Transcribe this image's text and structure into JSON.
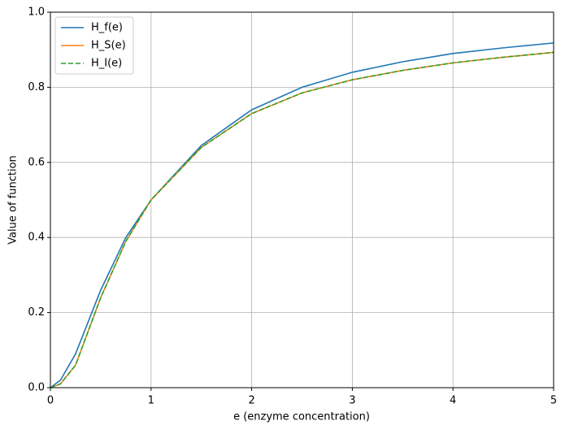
{
  "chart_data": {
    "type": "line",
    "xlabel": "e (enzyme concentration)",
    "ylabel": "Value of function",
    "x": [
      0,
      0.1,
      0.25,
      0.5,
      0.75,
      1,
      1.5,
      2,
      2.5,
      3,
      3.5,
      4,
      4.5,
      5
    ],
    "series": [
      {
        "name": "H_f(e)",
        "color": "#1f77b4",
        "dash": "solid",
        "values": [
          0,
          0.02,
          0.09,
          0.26,
          0.4,
          0.5,
          0.645,
          0.74,
          0.8,
          0.84,
          0.868,
          0.89,
          0.905,
          0.918
        ]
      },
      {
        "name": "H_S(e)",
        "color": "#ff7f0e",
        "dash": "solid",
        "values": [
          0,
          0.01,
          0.06,
          0.24,
          0.39,
          0.5,
          0.64,
          0.73,
          0.785,
          0.82,
          0.845,
          0.865,
          0.88,
          0.893
        ]
      },
      {
        "name": "H_I(e)",
        "color": "#2ca02c",
        "dash": "dashed",
        "values": [
          0,
          0.01,
          0.06,
          0.24,
          0.39,
          0.5,
          0.64,
          0.73,
          0.785,
          0.82,
          0.845,
          0.865,
          0.88,
          0.893
        ]
      }
    ],
    "xlim": [
      0,
      5
    ],
    "ylim": [
      0,
      1
    ],
    "xticks": [
      0,
      1,
      2,
      3,
      4,
      5
    ],
    "yticks": [
      {
        "value": 0,
        "label": "0.0"
      },
      0.2,
      0.4,
      0.6,
      0.8,
      {
        "value": 1,
        "label": "1.0"
      }
    ],
    "grid": true,
    "legend": "upper-left"
  }
}
